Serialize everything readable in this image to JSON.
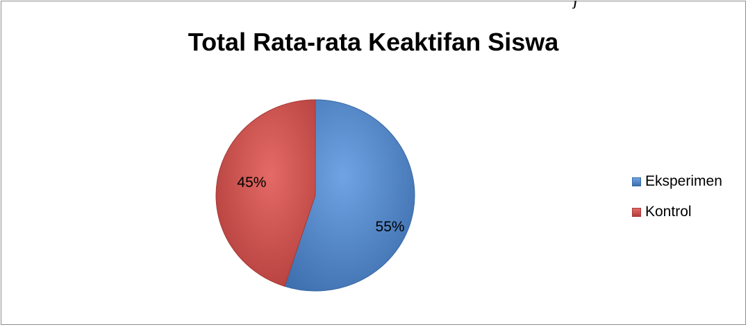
{
  "chart_data": {
    "type": "pie",
    "title": "Total Rata-rata Keaktifan Siswa",
    "top_mark": "j",
    "categories": [
      "Eksperimen",
      "Kontrol"
    ],
    "values": [
      55,
      45
    ],
    "data_labels": [
      "55%",
      "45%"
    ],
    "colors": [
      "#4a7ebb",
      "#be4b48"
    ],
    "legend": {
      "position": "right",
      "items": [
        "Eksperimen",
        "Kontrol"
      ]
    }
  }
}
